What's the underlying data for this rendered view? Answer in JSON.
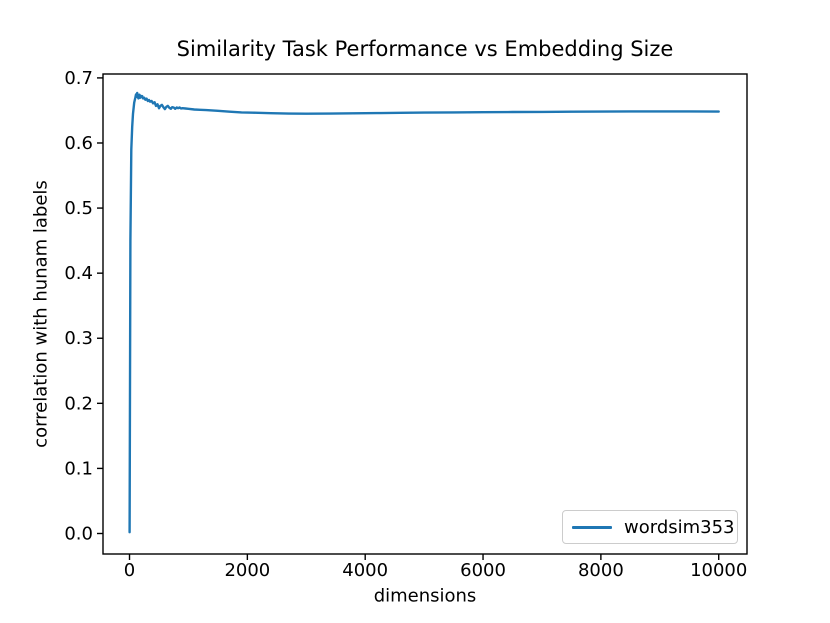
{
  "figure": {
    "background": "#ffffff"
  },
  "chart_data": {
    "type": "line",
    "title": "Similarity Task Performance vs Embedding Size",
    "xlabel": "dimensions",
    "ylabel": "correlation with hunam labels",
    "xlim": [
      -450,
      10480
    ],
    "ylim": [
      -0.0315,
      0.706
    ],
    "x_ticks": [
      0,
      2000,
      4000,
      6000,
      8000,
      10000
    ],
    "x_tick_labels": [
      "0",
      "2000",
      "4000",
      "6000",
      "8000",
      "10000"
    ],
    "y_ticks": [
      0.0,
      0.1,
      0.2,
      0.3,
      0.4,
      0.5,
      0.6,
      0.7
    ],
    "y_tick_labels": [
      "0.0",
      "0.1",
      "0.2",
      "0.3",
      "0.4",
      "0.5",
      "0.6",
      "0.7"
    ],
    "grid": false,
    "axis_color": "#000000",
    "legend": {
      "position": "lower right",
      "entries": [
        {
          "label": "wordsim353",
          "color": "#1f77b4"
        }
      ]
    },
    "series": [
      {
        "name": "wordsim353",
        "color": "#1f77b4",
        "points": [
          [
            1,
            0.002
          ],
          [
            15,
            0.45
          ],
          [
            30,
            0.59
          ],
          [
            45,
            0.625
          ],
          [
            60,
            0.645
          ],
          [
            80,
            0.662
          ],
          [
            100,
            0.67
          ],
          [
            110,
            0.6745
          ],
          [
            120,
            0.671
          ],
          [
            130,
            0.677
          ],
          [
            140,
            0.6715
          ],
          [
            150,
            0.6685
          ],
          [
            160,
            0.6725
          ],
          [
            170,
            0.674
          ],
          [
            180,
            0.6695
          ],
          [
            190,
            0.6725
          ],
          [
            200,
            0.6705
          ],
          [
            215,
            0.672
          ],
          [
            230,
            0.6685
          ],
          [
            250,
            0.6695
          ],
          [
            270,
            0.6665
          ],
          [
            290,
            0.668
          ],
          [
            310,
            0.6645
          ],
          [
            330,
            0.666
          ],
          [
            350,
            0.6635
          ],
          [
            375,
            0.6645
          ],
          [
            400,
            0.661
          ],
          [
            425,
            0.6625
          ],
          [
            450,
            0.657
          ],
          [
            475,
            0.6595
          ],
          [
            500,
            0.6535
          ],
          [
            525,
            0.657
          ],
          [
            550,
            0.6585
          ],
          [
            575,
            0.655
          ],
          [
            600,
            0.652
          ],
          [
            625,
            0.6555
          ],
          [
            650,
            0.657
          ],
          [
            675,
            0.654
          ],
          [
            700,
            0.6525
          ],
          [
            725,
            0.655
          ],
          [
            750,
            0.6545
          ],
          [
            775,
            0.6525
          ],
          [
            800,
            0.6545
          ],
          [
            825,
            0.6535
          ],
          [
            850,
            0.6545
          ],
          [
            875,
            0.653
          ],
          [
            900,
            0.6535
          ],
          [
            950,
            0.653
          ],
          [
            1000,
            0.6525
          ],
          [
            1100,
            0.6515
          ],
          [
            1200,
            0.651
          ],
          [
            1300,
            0.6505
          ],
          [
            1400,
            0.65
          ],
          [
            1500,
            0.6495
          ],
          [
            1700,
            0.648
          ],
          [
            1900,
            0.647
          ],
          [
            2100,
            0.6465
          ],
          [
            2400,
            0.6458
          ],
          [
            2700,
            0.6452
          ],
          [
            3000,
            0.645
          ],
          [
            3400,
            0.6452
          ],
          [
            3800,
            0.6456
          ],
          [
            4200,
            0.646
          ],
          [
            4600,
            0.6464
          ],
          [
            5000,
            0.6467
          ],
          [
            5500,
            0.647
          ],
          [
            6000,
            0.6473
          ],
          [
            6500,
            0.6476
          ],
          [
            7000,
            0.6478
          ],
          [
            7500,
            0.6481
          ],
          [
            8000,
            0.6483
          ],
          [
            8500,
            0.6485
          ],
          [
            9000,
            0.6486
          ],
          [
            9500,
            0.6486
          ],
          [
            10000,
            0.6483
          ]
        ]
      }
    ]
  }
}
